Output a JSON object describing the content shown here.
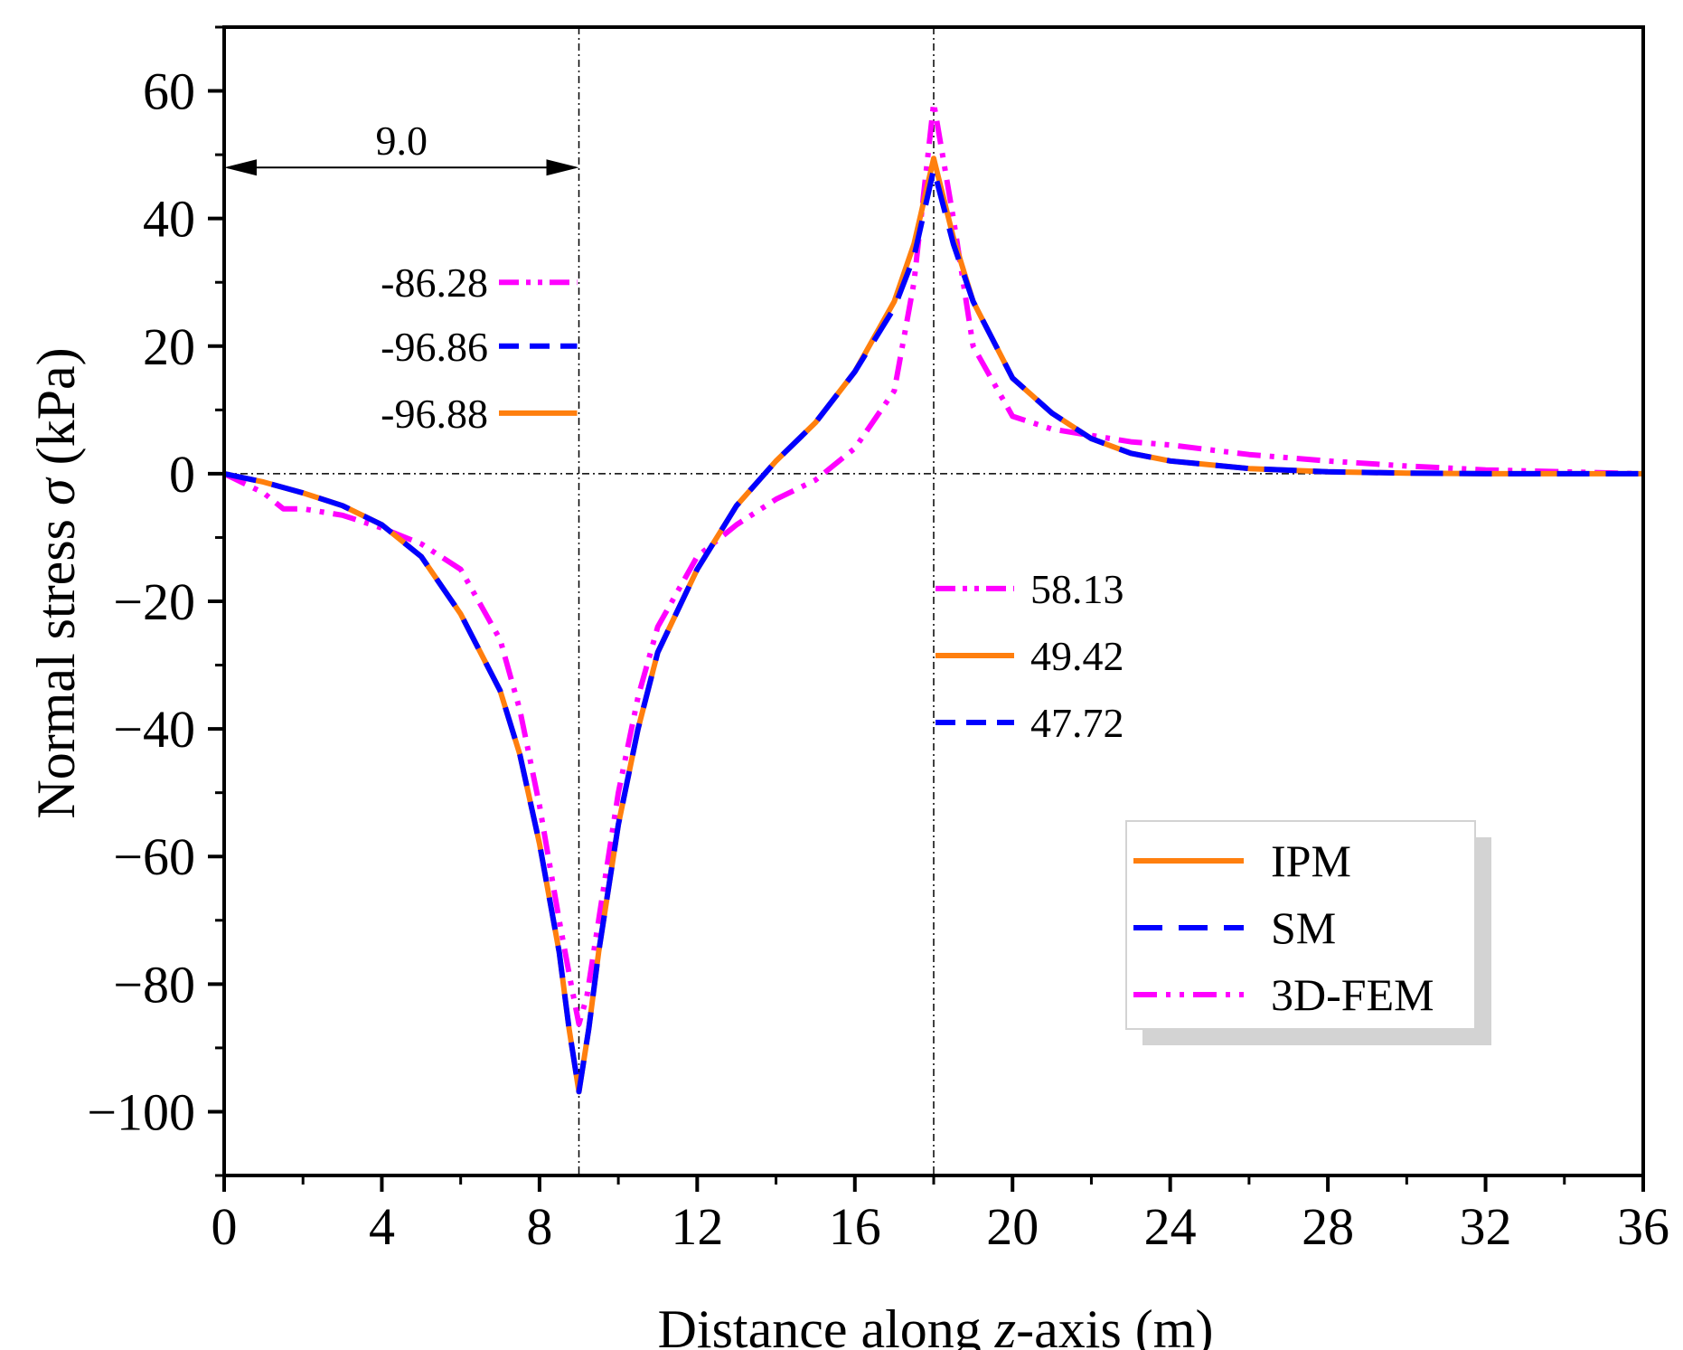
{
  "chart_data": {
    "type": "line",
    "xlabel_prefix": "Distance along ",
    "xlabel_var": "z",
    "xlabel_suffix": "-axis (m)",
    "ylabel_prefix": "Normal stress ",
    "ylabel_var": "σ",
    "ylabel_suffix": " (kPa)",
    "xlim": [
      0,
      36
    ],
    "ylim": [
      -110,
      70
    ],
    "xticks": [
      0,
      4,
      8,
      12,
      16,
      20,
      24,
      28,
      32,
      36
    ],
    "yticks": [
      60,
      40,
      20,
      0,
      -20,
      -40,
      -60,
      -80,
      -100
    ],
    "xtick_labels": [
      "0",
      "4",
      "8",
      "12",
      "16",
      "20",
      "24",
      "28",
      "32",
      "36"
    ],
    "ytick_labels": [
      "60",
      "40",
      "20",
      "0",
      "−20",
      "−40",
      "−60",
      "−80",
      "−100"
    ],
    "vlines": [
      9,
      18
    ],
    "hline": 0,
    "dimension": {
      "from": 0,
      "to": 9,
      "y": 48,
      "label": "9.0"
    },
    "series": [
      {
        "name": "IPM",
        "color": "#ff7f0e",
        "style": "solid",
        "x": [
          0,
          1,
          2,
          3,
          4,
          5,
          6,
          7,
          7.5,
          8,
          8.5,
          8.75,
          9,
          9.25,
          9.5,
          10,
          10.5,
          11,
          12,
          13,
          14,
          15,
          16,
          17,
          17.5,
          18,
          18.5,
          19,
          20,
          21,
          22,
          23,
          24,
          26,
          28,
          30,
          32,
          34,
          36
        ],
        "y": [
          0,
          -1.3,
          -3,
          -5,
          -8,
          -13,
          -22,
          -34,
          -44,
          -58,
          -75,
          -87,
          -96.88,
          -87,
          -75,
          -55,
          -40,
          -28,
          -15,
          -5,
          2,
          8,
          16,
          27,
          36,
          49.42,
          37,
          27,
          15,
          9.5,
          5.5,
          3.2,
          2,
          0.8,
          0.3,
          0.1,
          0,
          0,
          0
        ]
      },
      {
        "name": "SM",
        "color": "#0000ff",
        "style": "dashed",
        "x": [
          0,
          1,
          2,
          3,
          4,
          5,
          6,
          7,
          7.5,
          8,
          8.5,
          8.75,
          9,
          9.25,
          9.5,
          10,
          10.5,
          11,
          12,
          13,
          14,
          15,
          16,
          17,
          17.5,
          18,
          18.5,
          19,
          20,
          21,
          22,
          23,
          24,
          26,
          28,
          30,
          32,
          34,
          36
        ],
        "y": [
          0,
          -1.3,
          -3,
          -5,
          -8,
          -13,
          -22,
          -34,
          -44,
          -58,
          -75,
          -87,
          -96.86,
          -87,
          -75,
          -55,
          -40,
          -28,
          -15,
          -5,
          2,
          8,
          16,
          26,
          34,
          47.72,
          36,
          27,
          15,
          9.5,
          5.5,
          3.2,
          2,
          0.8,
          0.3,
          0.1,
          0,
          0,
          0
        ]
      },
      {
        "name": "3D-FEM",
        "color": "#ff00ff",
        "style": "dashdotdot",
        "x": [
          0,
          1,
          1.5,
          2,
          3,
          4,
          5,
          6,
          7,
          7.5,
          8,
          8.5,
          8.8,
          9,
          9.2,
          9.5,
          10,
          10.5,
          11,
          12,
          13,
          14,
          15,
          16,
          17,
          17.5,
          18,
          18.5,
          19,
          20,
          21,
          22,
          23,
          24,
          26,
          28,
          30,
          32,
          34,
          36
        ],
        "y": [
          0,
          -3,
          -5.5,
          -5.5,
          -6.5,
          -8.5,
          -11,
          -15,
          -26,
          -37,
          -52,
          -70,
          -80,
          -86.28,
          -82,
          -70,
          -50,
          -35,
          -24,
          -13,
          -8,
          -4,
          -1,
          4,
          13,
          30,
          58.13,
          40,
          20,
          9,
          7,
          6,
          5,
          4.5,
          3,
          2,
          1.2,
          0.6,
          0.3,
          0
        ]
      }
    ],
    "left_annotations": [
      {
        "label": "-86.28",
        "series": "3D-FEM",
        "y": 30
      },
      {
        "label": "-96.86",
        "series": "SM",
        "y": 20
      },
      {
        "label": "-96.88",
        "series": "IPM",
        "y": 9.5
      }
    ],
    "right_annotations": [
      {
        "label": "58.13",
        "series": "3D-FEM",
        "y": -18
      },
      {
        "label": "49.42",
        "series": "IPM",
        "y": -28.5
      },
      {
        "label": "47.72",
        "series": "SM",
        "y": -39
      }
    ],
    "legend": {
      "location": "lower-right",
      "entries": [
        "IPM",
        "SM",
        "3D-FEM"
      ]
    }
  }
}
